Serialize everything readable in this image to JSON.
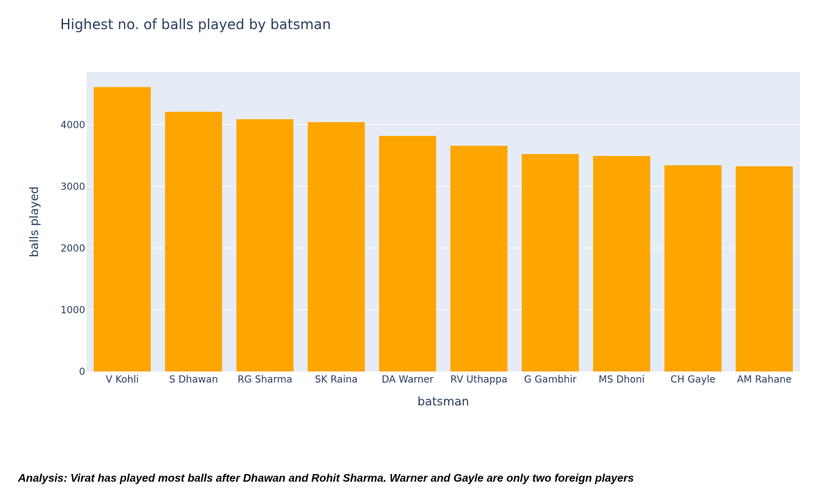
{
  "chart_data": {
    "type": "bar",
    "title": "Highest no. of balls played by batsman",
    "xlabel": "batsman",
    "ylabel": "balls played",
    "categories": [
      "V Kohli",
      "S Dhawan",
      "RG Sharma",
      "SK Raina",
      "DA Warner",
      "RV Uthappa",
      "G Gambhir",
      "MS Dhoni",
      "CH Gayle",
      "AM Rahane"
    ],
    "values": [
      4609,
      4208,
      4088,
      4041,
      3817,
      3658,
      3524,
      3493,
      3342,
      3325
    ],
    "yticks": [
      0,
      1000,
      2000,
      3000,
      4000
    ],
    "ytick_labels": [
      "0",
      "1000",
      "2000",
      "3000",
      "4000"
    ],
    "ylim": [
      0,
      4852
    ],
    "grid": true,
    "bar_color": "#ffa500",
    "plot_background": "#e5ecf6"
  },
  "analysis": {
    "text": "Analysis: Virat has played most balls after Dhawan and Rohit Sharma. Warner and Gayle are only two foreign players"
  }
}
